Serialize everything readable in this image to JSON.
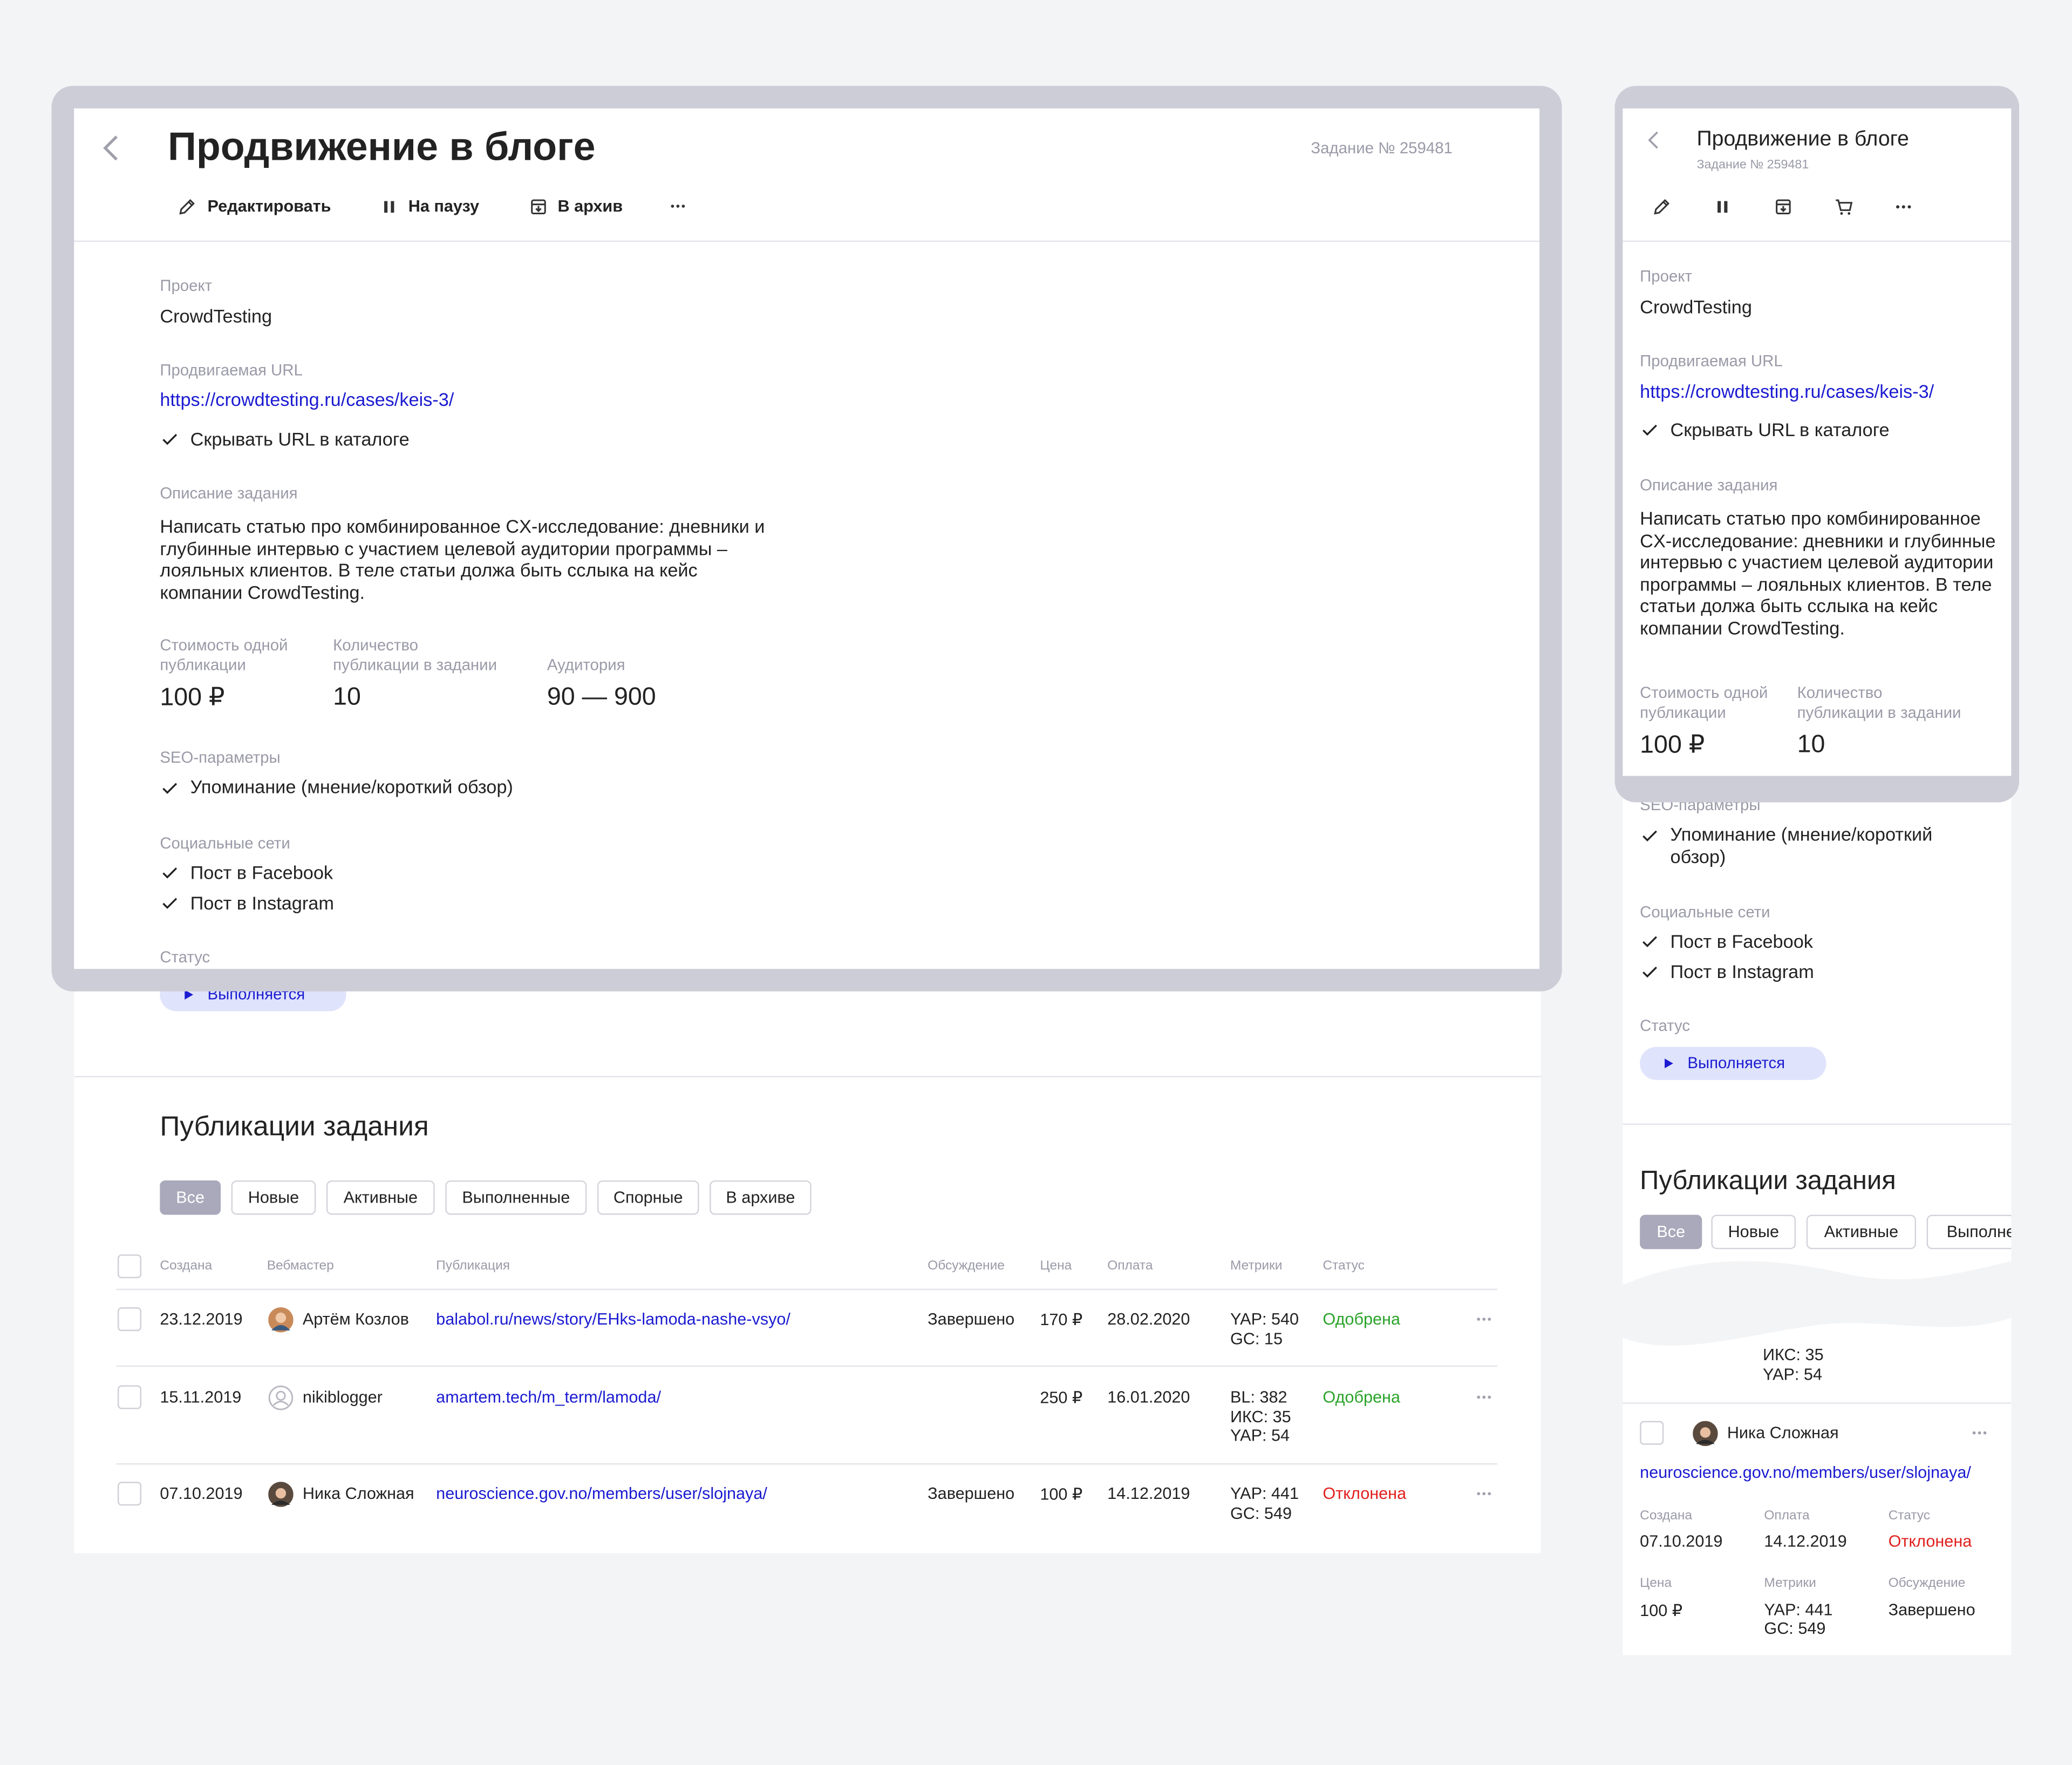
{
  "task": {
    "title": "Продвижение в блоге",
    "number": "Задание № 259481",
    "actions": [
      "Редактировать",
      "На паузу",
      "В архив"
    ],
    "project_label": "Проект",
    "project": "CrowdTesting",
    "url_label": "Продвигаемая URL",
    "url": "https://crowdtesting.ru/cases/keis-3/",
    "hide_url": "Скрывать URL в каталоге",
    "description_label": "Описание задания",
    "description": "Написать статью про комбинированное CX-исследование: дневники и глубинные интервью с участием целевой аудитории программы – лояльных клиентов. В теле статьи должа быть сслыка на кейс компании CrowdTesting.",
    "price_label": "Стоимость одной публикации",
    "price": "100 ₽",
    "count_label": "Количество публикации в задании",
    "count": "10",
    "audience_label": "Аудитория",
    "audience": "90 — 900",
    "seo_label": "SEO-параметры",
    "seo": [
      "Упоминание (мнение/короткий обзор)"
    ],
    "social_label": "Социальные сети",
    "social": [
      "Пост в Facebook",
      "Пост в Instagram"
    ],
    "status_label": "Статус",
    "status": "Выполняется"
  },
  "publications": {
    "title": "Публикации задания",
    "filters": [
      "Все",
      "Новые",
      "Активные",
      "Выполненные",
      "Спорные",
      "В архиве"
    ],
    "columns": [
      "Создана",
      "Вебмастер",
      "Публикация",
      "Обсуждение",
      "Цена",
      "Оплата",
      "Метрики",
      "Статус"
    ],
    "rows": [
      {
        "created": "23.12.2019",
        "webmaster": "Артём Козлов",
        "link": "balabol.ru/news/story/EHks-lamoda-nashe-vsyo/",
        "discussion": "Завершено",
        "price": "170 ₽",
        "payment": "28.02.2020",
        "metrics": [
          "YAP: 540",
          "GC: 15"
        ],
        "status": "Одобрена"
      },
      {
        "created": "15.11.2019",
        "webmaster": "nikiblogger",
        "link": "amartem.tech/m_term/lamoda/",
        "price": "250 ₽",
        "payment": "16.01.2020",
        "metrics": [
          "BL: 382",
          "ИКС: 35",
          "YAP: 54"
        ],
        "status": "Одобрена"
      },
      {
        "created": "07.10.2019",
        "webmaster": "Ника Сложная",
        "link": "neuroscience.gov.no/members/user/slojnaya/",
        "discussion": "Завершено",
        "price": "100 ₽",
        "payment": "14.12.2019",
        "metrics": [
          "YAP: 441",
          "GC: 549"
        ],
        "status": "Отклонена"
      }
    ]
  }
}
